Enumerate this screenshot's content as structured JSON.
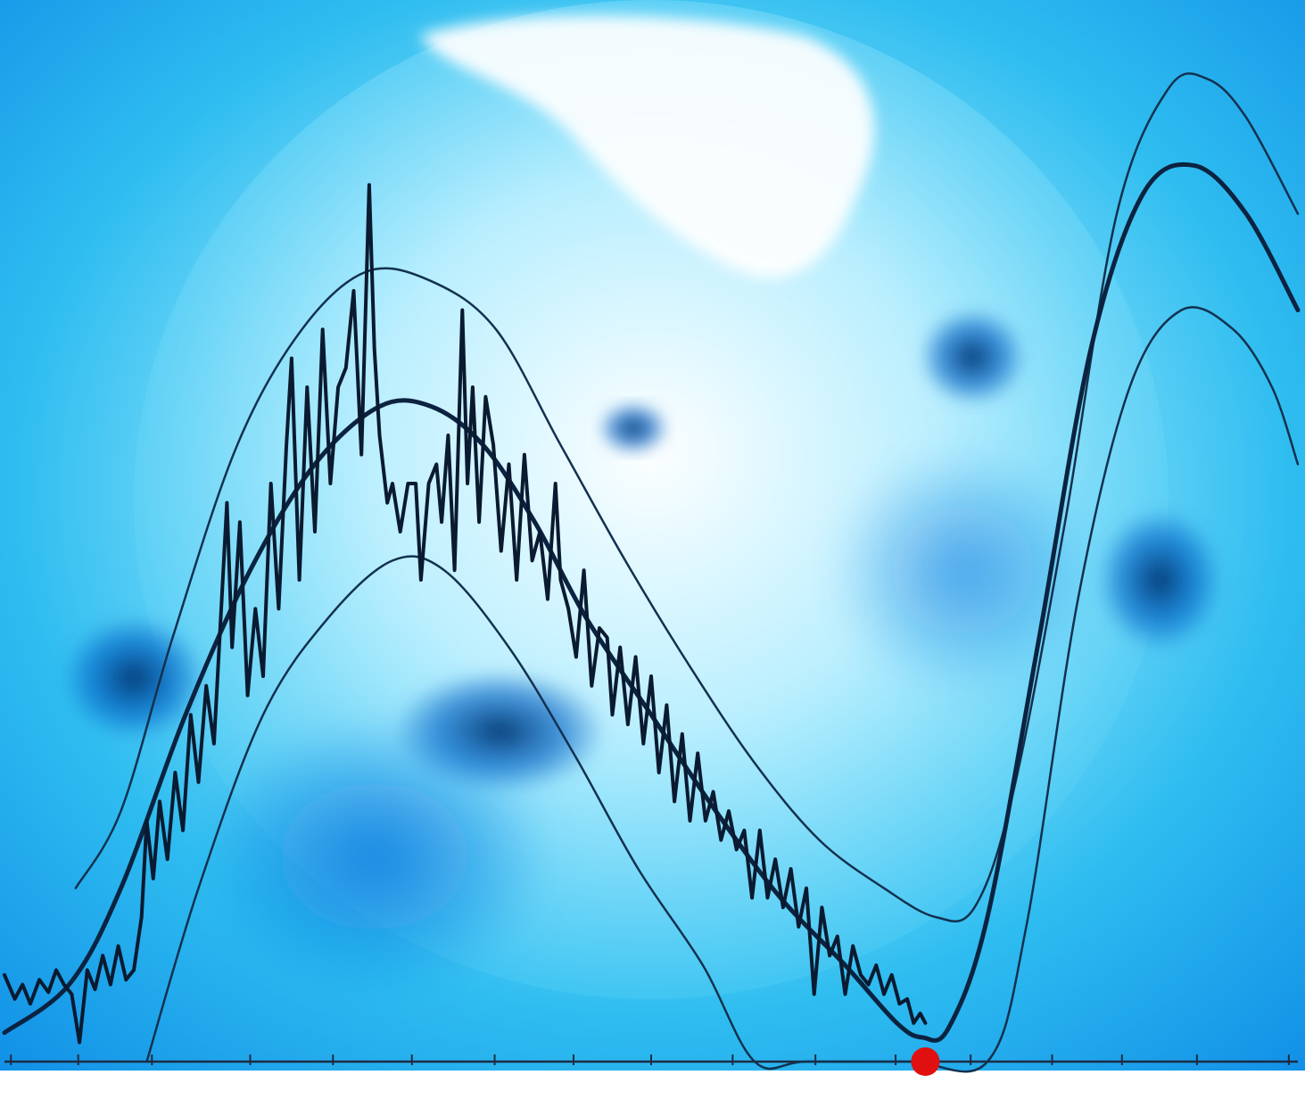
{
  "chart_data": {
    "type": "line",
    "title": "",
    "xlabel": "",
    "ylabel": "",
    "grid": false,
    "legend": "none",
    "tick_labels_visible": false,
    "xlim": [
      0,
      1
    ],
    "ylim": [
      0,
      1
    ],
    "x_ticks": [
      0.005,
      0.057,
      0.114,
      0.19,
      0.254,
      0.315,
      0.379,
      0.44,
      0.5,
      0.563,
      0.627,
      0.689,
      0.747,
      0.81,
      0.864,
      0.922,
      0.993
    ],
    "background_image": "solar-disk-blue-tint",
    "colors": {
      "axis": "#1d2b44",
      "mean_curve": "#0b2340",
      "envelope_curves": "#12314f",
      "observed_series": "#0a1a30",
      "minimum_marker": "#e01010",
      "sky_light": "#c6f3ff",
      "sky_mid": "#35c6f2",
      "sky_deep": "#0f7ee0",
      "sky_dark": "#03356e"
    },
    "series": [
      {
        "style": "observed-noisy",
        "points": [
          [
            0.0,
            0.09
          ],
          [
            0.008,
            0.065
          ],
          [
            0.014,
            0.08
          ],
          [
            0.02,
            0.06
          ],
          [
            0.027,
            0.085
          ],
          [
            0.034,
            0.072
          ],
          [
            0.04,
            0.095
          ],
          [
            0.046,
            0.08
          ],
          [
            0.052,
            0.07
          ],
          [
            0.058,
            0.02
          ],
          [
            0.064,
            0.095
          ],
          [
            0.07,
            0.075
          ],
          [
            0.076,
            0.11
          ],
          [
            0.082,
            0.08
          ],
          [
            0.088,
            0.12
          ],
          [
            0.094,
            0.085
          ],
          [
            0.1,
            0.095
          ],
          [
            0.106,
            0.15
          ],
          [
            0.11,
            0.25
          ],
          [
            0.115,
            0.19
          ],
          [
            0.12,
            0.27
          ],
          [
            0.126,
            0.21
          ],
          [
            0.132,
            0.3
          ],
          [
            0.138,
            0.24
          ],
          [
            0.144,
            0.36
          ],
          [
            0.15,
            0.29
          ],
          [
            0.156,
            0.39
          ],
          [
            0.162,
            0.33
          ],
          [
            0.168,
            0.48
          ],
          [
            0.172,
            0.58
          ],
          [
            0.176,
            0.43
          ],
          [
            0.182,
            0.56
          ],
          [
            0.188,
            0.38
          ],
          [
            0.194,
            0.47
          ],
          [
            0.2,
            0.4
          ],
          [
            0.206,
            0.6
          ],
          [
            0.212,
            0.47
          ],
          [
            0.218,
            0.64
          ],
          [
            0.222,
            0.73
          ],
          [
            0.228,
            0.5
          ],
          [
            0.234,
            0.7
          ],
          [
            0.24,
            0.55
          ],
          [
            0.246,
            0.76
          ],
          [
            0.252,
            0.6
          ],
          [
            0.258,
            0.7
          ],
          [
            0.264,
            0.72
          ],
          [
            0.27,
            0.8
          ],
          [
            0.276,
            0.63
          ],
          [
            0.282,
            0.91
          ],
          [
            0.286,
            0.74
          ],
          [
            0.29,
            0.65
          ],
          [
            0.296,
            0.58
          ],
          [
            0.3,
            0.6
          ],
          [
            0.306,
            0.55
          ],
          [
            0.312,
            0.6
          ],
          [
            0.318,
            0.6
          ],
          [
            0.322,
            0.5
          ],
          [
            0.328,
            0.6
          ],
          [
            0.334,
            0.62
          ],
          [
            0.338,
            0.56
          ],
          [
            0.343,
            0.65
          ],
          [
            0.348,
            0.51
          ],
          [
            0.354,
            0.78
          ],
          [
            0.358,
            0.6
          ],
          [
            0.362,
            0.7
          ],
          [
            0.367,
            0.56
          ],
          [
            0.372,
            0.69
          ],
          [
            0.378,
            0.64
          ],
          [
            0.384,
            0.53
          ],
          [
            0.39,
            0.62
          ],
          [
            0.396,
            0.5
          ],
          [
            0.402,
            0.63
          ],
          [
            0.408,
            0.52
          ],
          [
            0.414,
            0.55
          ],
          [
            0.42,
            0.48
          ],
          [
            0.426,
            0.6
          ],
          [
            0.43,
            0.5
          ],
          [
            0.436,
            0.47
          ],
          [
            0.442,
            0.42
          ],
          [
            0.448,
            0.51
          ],
          [
            0.454,
            0.39
          ],
          [
            0.46,
            0.45
          ],
          [
            0.466,
            0.44
          ],
          [
            0.47,
            0.36
          ],
          [
            0.476,
            0.43
          ],
          [
            0.482,
            0.35
          ],
          [
            0.488,
            0.42
          ],
          [
            0.494,
            0.33
          ],
          [
            0.5,
            0.4
          ],
          [
            0.506,
            0.3
          ],
          [
            0.512,
            0.37
          ],
          [
            0.518,
            0.27
          ],
          [
            0.524,
            0.34
          ],
          [
            0.53,
            0.25
          ],
          [
            0.536,
            0.32
          ],
          [
            0.542,
            0.25
          ],
          [
            0.548,
            0.28
          ],
          [
            0.554,
            0.23
          ],
          [
            0.56,
            0.26
          ],
          [
            0.566,
            0.22
          ],
          [
            0.572,
            0.24
          ],
          [
            0.578,
            0.17
          ],
          [
            0.584,
            0.24
          ],
          [
            0.59,
            0.17
          ],
          [
            0.596,
            0.21
          ],
          [
            0.602,
            0.16
          ],
          [
            0.608,
            0.2
          ],
          [
            0.614,
            0.14
          ],
          [
            0.62,
            0.18
          ],
          [
            0.626,
            0.07
          ],
          [
            0.632,
            0.16
          ],
          [
            0.638,
            0.11
          ],
          [
            0.644,
            0.13
          ],
          [
            0.65,
            0.07
          ],
          [
            0.656,
            0.12
          ],
          [
            0.662,
            0.09
          ],
          [
            0.668,
            0.08
          ],
          [
            0.674,
            0.1
          ],
          [
            0.68,
            0.07
          ],
          [
            0.686,
            0.09
          ],
          [
            0.692,
            0.06
          ],
          [
            0.698,
            0.065
          ],
          [
            0.703,
            0.04
          ],
          [
            0.708,
            0.05
          ],
          [
            0.712,
            0.04
          ]
        ]
      },
      {
        "style": "mean-curve-bold",
        "points": [
          [
            0.0,
            0.03
          ],
          [
            0.05,
            0.08
          ],
          [
            0.09,
            0.18
          ],
          [
            0.14,
            0.36
          ],
          [
            0.19,
            0.51
          ],
          [
            0.24,
            0.62
          ],
          [
            0.29,
            0.68
          ],
          [
            0.33,
            0.68
          ],
          [
            0.37,
            0.64
          ],
          [
            0.41,
            0.56
          ],
          [
            0.45,
            0.46
          ],
          [
            0.5,
            0.36
          ],
          [
            0.55,
            0.26
          ],
          [
            0.6,
            0.17
          ],
          [
            0.65,
            0.1
          ],
          [
            0.69,
            0.04
          ],
          [
            0.71,
            0.025
          ],
          [
            0.73,
            0.035
          ],
          [
            0.76,
            0.15
          ],
          [
            0.8,
            0.44
          ],
          [
            0.84,
            0.74
          ],
          [
            0.88,
            0.9
          ],
          [
            0.92,
            0.93
          ],
          [
            0.96,
            0.88
          ],
          [
            1.0,
            0.78
          ]
        ]
      },
      {
        "style": "upper-envelope",
        "points": [
          [
            0.055,
            0.18
          ],
          [
            0.09,
            0.26
          ],
          [
            0.13,
            0.44
          ],
          [
            0.18,
            0.64
          ],
          [
            0.23,
            0.76
          ],
          [
            0.28,
            0.82
          ],
          [
            0.33,
            0.81
          ],
          [
            0.38,
            0.76
          ],
          [
            0.43,
            0.64
          ],
          [
            0.48,
            0.52
          ],
          [
            0.53,
            0.41
          ],
          [
            0.58,
            0.31
          ],
          [
            0.63,
            0.23
          ],
          [
            0.68,
            0.18
          ],
          [
            0.72,
            0.15
          ],
          [
            0.75,
            0.16
          ],
          [
            0.78,
            0.28
          ],
          [
            0.82,
            0.56
          ],
          [
            0.86,
            0.88
          ],
          [
            0.9,
            1.01
          ],
          [
            0.93,
            1.02
          ],
          [
            0.96,
            0.98
          ],
          [
            1.0,
            0.88
          ]
        ]
      },
      {
        "style": "lower-envelope",
        "points": [
          [
            0.11,
            0.0
          ],
          [
            0.15,
            0.18
          ],
          [
            0.2,
            0.36
          ],
          [
            0.25,
            0.46
          ],
          [
            0.3,
            0.52
          ],
          [
            0.34,
            0.51
          ],
          [
            0.39,
            0.43
          ],
          [
            0.44,
            0.32
          ],
          [
            0.49,
            0.2
          ],
          [
            0.54,
            0.1
          ],
          [
            0.58,
            0.0
          ],
          [
            0.62,
            0.0
          ],
          [
            0.7,
            0.0
          ],
          [
            0.76,
            0.0
          ],
          [
            0.79,
            0.14
          ],
          [
            0.83,
            0.48
          ],
          [
            0.87,
            0.7
          ],
          [
            0.91,
            0.78
          ],
          [
            0.95,
            0.76
          ],
          [
            0.98,
            0.7
          ],
          [
            1.0,
            0.62
          ]
        ]
      }
    ],
    "markers": [
      {
        "kind": "minimum-dot",
        "x": 0.712,
        "y": 0.0
      }
    ]
  }
}
